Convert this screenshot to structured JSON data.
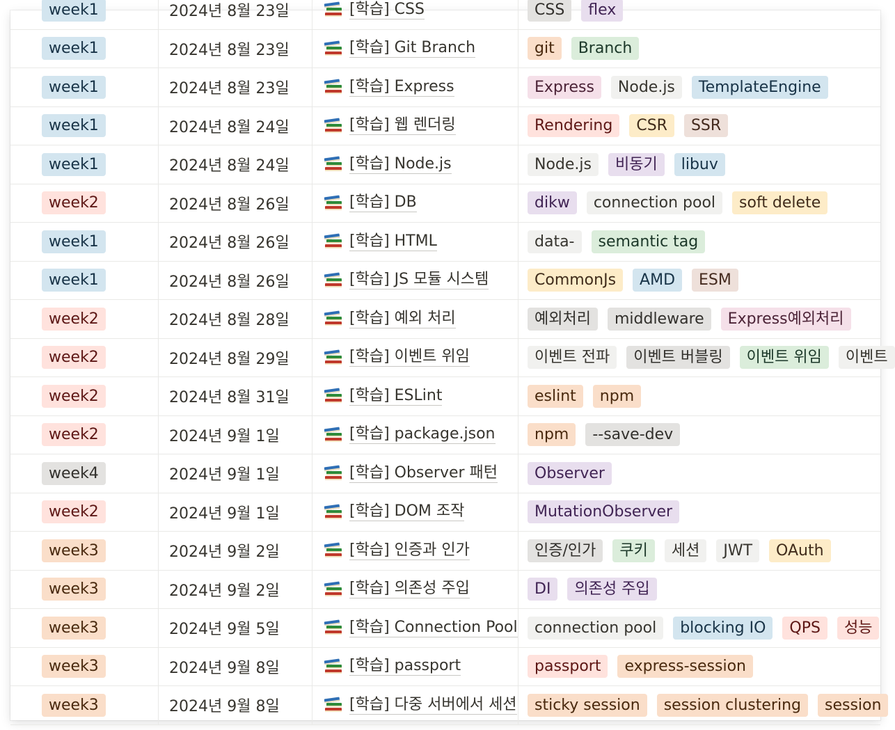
{
  "colors": {
    "blue": [
      "#d3e5ef",
      "#183347"
    ],
    "red": [
      "#ffe2dd",
      "#5d1715"
    ],
    "gray": [
      "#e3e2e0",
      "#32302c"
    ],
    "orange": [
      "#fadec9",
      "#49290e"
    ],
    "yellow": [
      "#fdecc8",
      "#402c1b"
    ],
    "green": [
      "#dbeddb",
      "#1c3829"
    ],
    "purple": [
      "#e8deee",
      "#412454"
    ],
    "pink": [
      "#f5e0e9",
      "#4c2337"
    ],
    "brown": [
      "#eee0da",
      "#442a1e"
    ],
    "default": [
      "#f1f1ef",
      "#37352f"
    ]
  },
  "rows": [
    {
      "week": "week1",
      "week_color": "blue",
      "date": "2024년 8월 23일",
      "title": "[학습] CSS",
      "tags": [
        {
          "label": "CSS",
          "color": "gray"
        },
        {
          "label": "flex",
          "color": "purple"
        }
      ]
    },
    {
      "week": "week1",
      "week_color": "blue",
      "date": "2024년 8월 23일",
      "title": "[학습] Git Branch",
      "tags": [
        {
          "label": "git",
          "color": "orange"
        },
        {
          "label": "Branch",
          "color": "green"
        }
      ]
    },
    {
      "week": "week1",
      "week_color": "blue",
      "date": "2024년 8월 23일",
      "title": "[학습] Express",
      "tags": [
        {
          "label": "Express",
          "color": "pink"
        },
        {
          "label": "Node.js",
          "color": "default"
        },
        {
          "label": "TemplateEngine",
          "color": "blue"
        }
      ]
    },
    {
      "week": "week1",
      "week_color": "blue",
      "date": "2024년 8월 24일",
      "title": "[학습] 웹 렌더링",
      "tags": [
        {
          "label": "Rendering",
          "color": "red"
        },
        {
          "label": "CSR",
          "color": "yellow"
        },
        {
          "label": "SSR",
          "color": "brown"
        }
      ]
    },
    {
      "week": "week1",
      "week_color": "blue",
      "date": "2024년 8월 24일",
      "title": "[학습] Node.js",
      "tags": [
        {
          "label": "Node.js",
          "color": "default"
        },
        {
          "label": "비동기",
          "color": "purple"
        },
        {
          "label": "libuv",
          "color": "blue"
        }
      ]
    },
    {
      "week": "week2",
      "week_color": "red",
      "date": "2024년 8월 26일",
      "title": "[학습] DB",
      "tags": [
        {
          "label": "dikw",
          "color": "purple"
        },
        {
          "label": "connection pool",
          "color": "default"
        },
        {
          "label": "soft delete",
          "color": "yellow"
        }
      ]
    },
    {
      "week": "week1",
      "week_color": "blue",
      "date": "2024년 8월 26일",
      "title": "[학습] HTML",
      "tags": [
        {
          "label": "data-",
          "color": "default"
        },
        {
          "label": "semantic tag",
          "color": "green"
        }
      ]
    },
    {
      "week": "week1",
      "week_color": "blue",
      "date": "2024년 8월 26일",
      "title": "[학습] JS 모듈 시스템",
      "tags": [
        {
          "label": "CommonJs",
          "color": "yellow"
        },
        {
          "label": "AMD",
          "color": "blue"
        },
        {
          "label": "ESM",
          "color": "brown"
        }
      ]
    },
    {
      "week": "week2",
      "week_color": "red",
      "date": "2024년 8월 28일",
      "title": "[학습] 예외 처리",
      "tags": [
        {
          "label": "예외처리",
          "color": "gray"
        },
        {
          "label": "middleware",
          "color": "gray"
        },
        {
          "label": "Express예외처리",
          "color": "pink"
        }
      ]
    },
    {
      "week": "week2",
      "week_color": "red",
      "date": "2024년 8월 29일",
      "title": "[학습] 이벤트 위임",
      "tags": [
        {
          "label": "이벤트 전파",
          "color": "default"
        },
        {
          "label": "이벤트 버블링",
          "color": "gray"
        },
        {
          "label": "이벤트 위임",
          "color": "green"
        },
        {
          "label": "이벤트",
          "color": "default"
        }
      ]
    },
    {
      "week": "week2",
      "week_color": "red",
      "date": "2024년 8월 31일",
      "title": "[학습] ESLint",
      "tags": [
        {
          "label": "eslint",
          "color": "orange"
        },
        {
          "label": "npm",
          "color": "orange"
        }
      ]
    },
    {
      "week": "week2",
      "week_color": "red",
      "date": "2024년 9월 1일",
      "title": "[학습] package.json",
      "tags": [
        {
          "label": "npm",
          "color": "orange"
        },
        {
          "label": "--save-dev",
          "color": "gray"
        }
      ]
    },
    {
      "week": "week4",
      "week_color": "gray",
      "date": "2024년 9월 1일",
      "title": "[학습] Observer 패턴",
      "tags": [
        {
          "label": "Observer",
          "color": "purple"
        }
      ]
    },
    {
      "week": "week2",
      "week_color": "red",
      "date": "2024년 9월 1일",
      "title": "[학습] DOM 조작",
      "tags": [
        {
          "label": "MutationObserver",
          "color": "purple"
        }
      ]
    },
    {
      "week": "week3",
      "week_color": "orange",
      "date": "2024년 9월 2일",
      "title": "[학습] 인증과 인가",
      "tags": [
        {
          "label": "인증/인가",
          "color": "gray"
        },
        {
          "label": "쿠키",
          "color": "green"
        },
        {
          "label": "세션",
          "color": "default"
        },
        {
          "label": "JWT",
          "color": "default"
        },
        {
          "label": "OAuth",
          "color": "yellow"
        }
      ]
    },
    {
      "week": "week3",
      "week_color": "orange",
      "date": "2024년 9월 2일",
      "title": "[학습] 의존성 주입",
      "tags": [
        {
          "label": "DI",
          "color": "purple"
        },
        {
          "label": "의존성 주입",
          "color": "purple"
        }
      ]
    },
    {
      "week": "week3",
      "week_color": "orange",
      "date": "2024년 9월 5일",
      "title": "[학습] Connection Pool",
      "tags": [
        {
          "label": "connection pool",
          "color": "default"
        },
        {
          "label": "blocking IO",
          "color": "blue"
        },
        {
          "label": "QPS",
          "color": "red"
        },
        {
          "label": "성능",
          "color": "red"
        }
      ]
    },
    {
      "week": "week3",
      "week_color": "orange",
      "date": "2024년 9월 8일",
      "title": "[학습] passport",
      "tags": [
        {
          "label": "passport",
          "color": "red"
        },
        {
          "label": "express-session",
          "color": "orange"
        }
      ]
    },
    {
      "week": "week3",
      "week_color": "orange",
      "date": "2024년 9월 8일",
      "title": "[학습] 다중 서버에서 세션",
      "tags": [
        {
          "label": "sticky session",
          "color": "orange"
        },
        {
          "label": "session clustering",
          "color": "orange"
        },
        {
          "label": "session",
          "color": "orange"
        }
      ]
    }
  ]
}
